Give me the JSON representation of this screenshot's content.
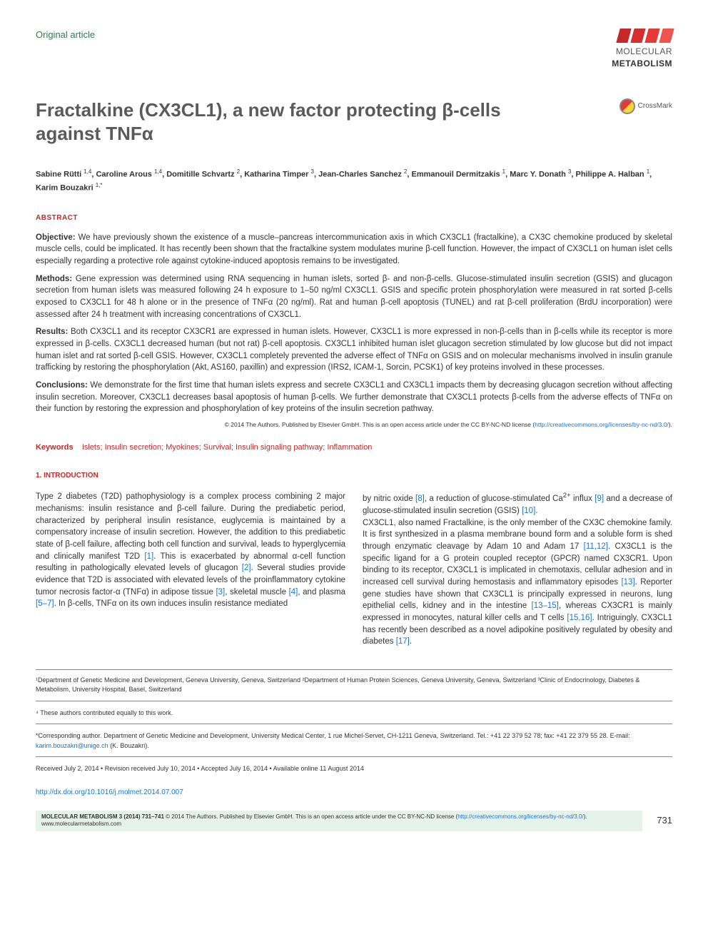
{
  "header": {
    "article_type": "Original article",
    "journal_line1": "MOLECULAR",
    "journal_line2": "METABOLISM"
  },
  "title": "Fractalkine (CX3CL1), a new factor protecting β-cells against TNFα",
  "crossmark_label": "CrossMark",
  "authors_html": "Sabine Rütti <sup>1,4</sup>, Caroline Arous <sup>1,4</sup>, Domitille Schvartz <sup>2</sup>, Katharina Timper <sup>3</sup>, Jean-Charles Sanchez <sup>2</sup>, Emmanouil Dermitzakis <sup>1</sup>, Marc Y. Donath <sup>3</sup>, Philippe A. Halban <sup>1</sup>, Karim Bouzakri <sup>1,*</sup>",
  "abstract": {
    "label": "ABSTRACT",
    "objective_label": "Objective:",
    "objective_text": "We have previously shown the existence of a muscle–pancreas intercommunication axis in which CX3CL1 (fractalkine), a CX3C chemokine produced by skeletal muscle cells, could be implicated. It has recently been shown that the fractalkine system modulates murine β-cell function. However, the impact of CX3CL1 on human islet cells especially regarding a protective role against cytokine-induced apoptosis remains to be investigated.",
    "methods_label": "Methods:",
    "methods_text": "Gene expression was determined using RNA sequencing in human islets, sorted β- and non-β-cells. Glucose-stimulated insulin secretion (GSIS) and glucagon secretion from human islets was measured following 24 h exposure to 1–50 ng/ml CX3CL1. GSIS and specific protein phosphorylation were measured in rat sorted β-cells exposed to CX3CL1 for 48 h alone or in the presence of TNFα (20 ng/ml). Rat and human β-cell apoptosis (TUNEL) and rat β-cell proliferation (BrdU incorporation) were assessed after 24 h treatment with increasing concentrations of CX3CL1.",
    "results_label": "Results:",
    "results_text": "Both CX3CL1 and its receptor CX3CR1 are expressed in human islets. However, CX3CL1 is more expressed in non-β-cells than in β-cells while its receptor is more expressed in β-cells. CX3CL1 decreased human (but not rat) β-cell apoptosis. CX3CL1 inhibited human islet glucagon secretion stimulated by low glucose but did not impact human islet and rat sorted β-cell GSIS. However, CX3CL1 completely prevented the adverse effect of TNFα on GSIS and on molecular mechanisms involved in insulin granule trafficking by restoring the phosphorylation (Akt, AS160, paxillin) and expression (IRS2, ICAM-1, Sorcin, PCSK1) of key proteins involved in these processes.",
    "conclusions_label": "Conclusions:",
    "conclusions_text": "We demonstrate for the first time that human islets express and secrete CX3CL1 and CX3CL1 impacts them by decreasing glucagon secretion without affecting insulin secretion. Moreover, CX3CL1 decreases basal apoptosis of human β-cells. We further demonstrate that CX3CL1 protects β-cells from the adverse effects of TNFα on their function by restoring the expression and phosphorylation of key proteins of the insulin secretion pathway.",
    "copyright": "© 2014 The Authors. Published by Elsevier GmbH. This is an open access article under the CC BY-NC-ND license (",
    "copyright_link": "http://creativecommons.org/licenses/by-nc-nd/3.0/",
    "copyright_close": ")."
  },
  "keywords": {
    "label": "Keywords",
    "text": "Islets; Insulin secretion; Myokines; Survival; Insulin signaling pathway; Inflammation"
  },
  "introduction": {
    "heading": "1. INTRODUCTION",
    "col1_p1": "Type 2 diabetes (T2D) pathophysiology is a complex process combining 2 major mechanisms: insulin resistance and β-cell failure. During the prediabetic period, characterized by peripheral insulin resistance, euglycemia is maintained by a compensatory increase of insulin secretion. However, the addition to this prediabetic state of β-cell failure, affecting both cell function and survival, leads to hyperglycemia and clinically manifest T2D ",
    "ref1": "[1]",
    "col1_p2": ". This is exacerbated by abnormal α-cell function resulting in pathologically elevated levels of glucagon ",
    "ref2": "[2]",
    "col1_p3": ". Several studies provide evidence that T2D is associated with elevated levels of the proinflammatory cytokine tumor necrosis factor-α (TNFα) in adipose tissue ",
    "ref3": "[3]",
    "col1_p4": ", skeletal muscle ",
    "ref4": "[4]",
    "col1_p5": ", and plasma ",
    "ref5_7": "[5–7]",
    "col1_p6": ". In β-cells, TNFα on its own induces insulin resistance mediated",
    "col2_p1": "by nitric oxide ",
    "ref8": "[8]",
    "col2_p2": ", a reduction of glucose-stimulated Ca",
    "ca_sup": "2+",
    "col2_p2b": " influx ",
    "ref9": "[9]",
    "col2_p3": " and a decrease of glucose-stimulated insulin secretion (GSIS) ",
    "ref10": "[10]",
    "col2_p4": ".",
    "col2_p5": "CX3CL1, also named Fractalkine, is the only member of the CX3C chemokine family. It is first synthesized in a plasma membrane bound form and a soluble form is shed through enzymatic cleavage by Adam 10 and Adam 17 ",
    "ref11_12": "[11,12]",
    "col2_p6": ". CX3CL1 is the specific ligand for a G protein coupled receptor (GPCR) named CX3CR1. Upon binding to its receptor, CX3CL1 is implicated in chemotaxis, cellular adhesion and in increased cell survival during hemostasis and inflammatory episodes ",
    "ref13": "[13]",
    "col2_p7": ". Reporter gene studies have shown that CX3CL1 is principally expressed in neurons, lung epithelial cells, kidney and in the intestine ",
    "ref13_15": "[13–15]",
    "col2_p8": ", whereas CX3CR1 is mainly expressed in monocytes, natural killer cells and T cells ",
    "ref15_16": "[15,16]",
    "col2_p9": ". Intriguingly, CX3CL1 has recently been described as a novel adipokine positively regulated by obesity and diabetes ",
    "ref17": "[17]",
    "col2_p10": "."
  },
  "footnotes": {
    "affiliations": "¹Department of Genetic Medicine and Development, Geneva University, Geneva, Switzerland ²Department of Human Protein Sciences, Geneva University, Geneva, Switzerland ³Clinic of Endocrinology, Diabetes & Metabolism, University Hospital, Basel, Switzerland",
    "equal": "⁴ These authors contributed equally to this work.",
    "corresponding": "*Corresponding author. Department of Genetic Medicine and Development, University Medical Center, 1 rue Michel-Servet, CH-1211 Geneva, Switzerland. Tel.: +41 22 379 52 78; fax: +41 22 379 55 28. E-mail: ",
    "corresponding_email": "karim.bouzakri@unige.ch",
    "corresponding_name": " (K. Bouzakri).",
    "dates": "Received July 2, 2014 • Revision received July 10, 2014 • Accepted July 16, 2014 • Available online 11 August 2014",
    "doi": "http://dx.doi.org/10.1016/j.molmet.2014.07.007"
  },
  "footer": {
    "journal_ref": "MOLECULAR METABOLISM 3 (2014) 731–741",
    "copyright": " © 2014 The Authors. Published by Elsevier GmbH. This is an open access article under the CC BY-NC-ND license (",
    "link": "http://creativecommons.org/licenses/by-nc-nd/3.0/",
    "close": ").",
    "website": "www.molecularmetabolism.com",
    "page_number": "731"
  }
}
